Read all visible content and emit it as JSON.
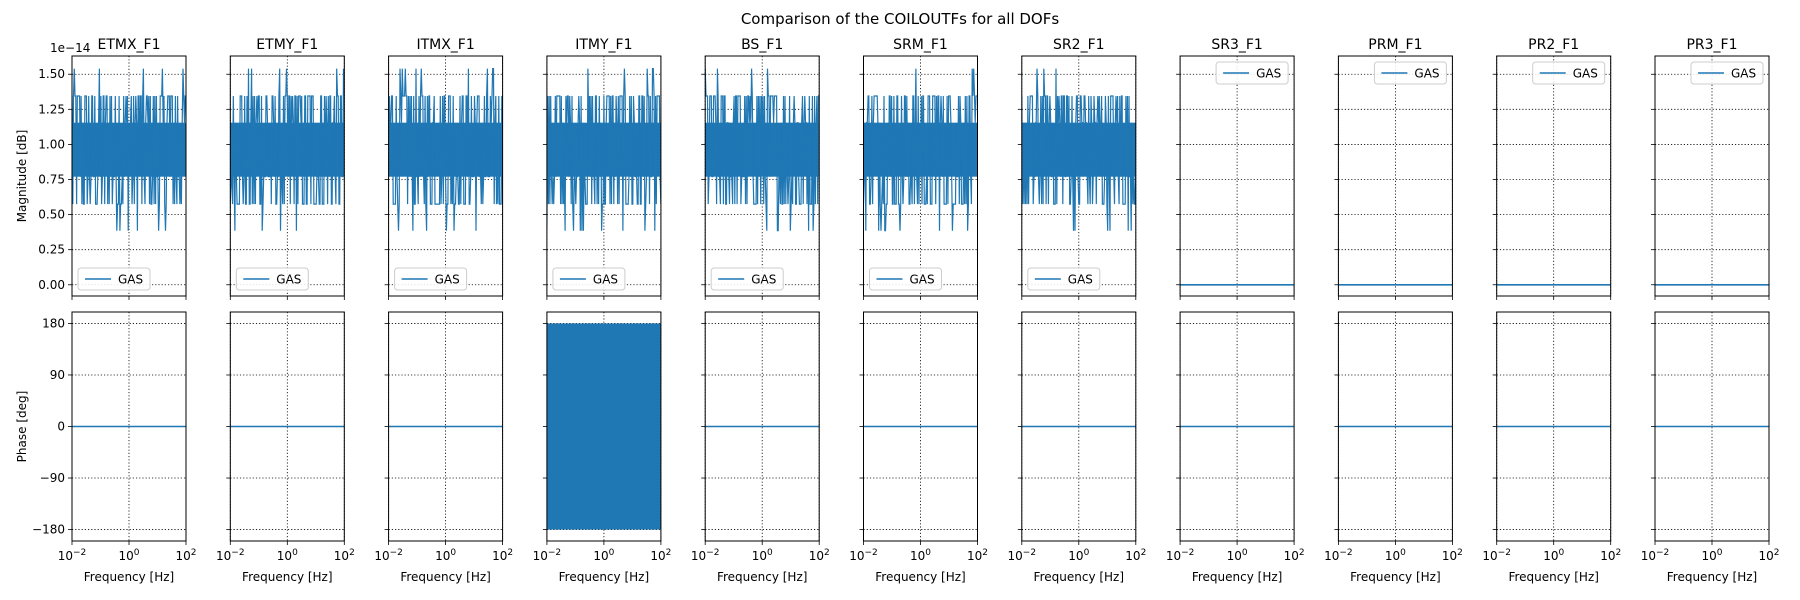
{
  "figure": {
    "title": "Comparison of the COILOUTFs for all DOFs"
  },
  "chart_data": {
    "type": "line",
    "title": "Comparison of the COILOUTFs for all DOFs",
    "panels": [
      "ETMX_F1",
      "ETMY_F1",
      "ITMX_F1",
      "ITMY_F1",
      "BS_F1",
      "SRM_F1",
      "SR2_F1",
      "SR3_F1",
      "PRM_F1",
      "PR2_F1",
      "PR3_F1"
    ],
    "series_name": "GAS",
    "series_color": "#1f77b4",
    "magnitude": {
      "ylabel": "Magnitude [dB]",
      "ylim": [
        -0.08,
        1.63
      ],
      "yticks": [
        0.0,
        0.25,
        0.5,
        0.75,
        1.0,
        1.25,
        1.5
      ],
      "ytick_labels": [
        "0.00",
        "0.25",
        "0.50",
        "0.75",
        "1.00",
        "1.25",
        "1.50"
      ],
      "offset_label": "1e−14",
      "noisy_panels": [
        "ETMX_F1",
        "ETMY_F1",
        "ITMX_F1",
        "ITMY_F1",
        "BS_F1",
        "SRM_F1",
        "SR2_F1"
      ],
      "flat_panels": [
        "SR3_F1",
        "PRM_F1",
        "PR2_F1",
        "PR3_F1"
      ],
      "flat_value": 0.0,
      "levels": [
        0.385,
        0.575,
        0.77,
        0.96,
        1.155,
        1.345,
        1.54
      ],
      "main_band": [
        0.77,
        1.155
      ],
      "legend_position_noisy": "lower left",
      "legend_position_flat": "upper right"
    },
    "phase": {
      "ylabel": "Phase [deg]",
      "ylim": [
        -200,
        200
      ],
      "yticks": [
        180,
        90,
        0,
        -90,
        -180
      ],
      "ytick_labels": [
        "180",
        "90",
        "0",
        "−90",
        "−180"
      ],
      "flat_value": 0,
      "wrapped_panel": "ITMY_F1",
      "wrapped_range": [
        -180,
        180
      ]
    },
    "x": {
      "xlabel": "Frequency [Hz]",
      "scale": "log",
      "xlim": [
        0.01,
        100
      ],
      "xticks": [
        0.01,
        1,
        100
      ],
      "xtick_labels": [
        {
          "base": "10",
          "exp": "−2"
        },
        {
          "base": "10",
          "exp": "0"
        },
        {
          "base": "10",
          "exp": "2"
        }
      ]
    },
    "grid": true
  }
}
